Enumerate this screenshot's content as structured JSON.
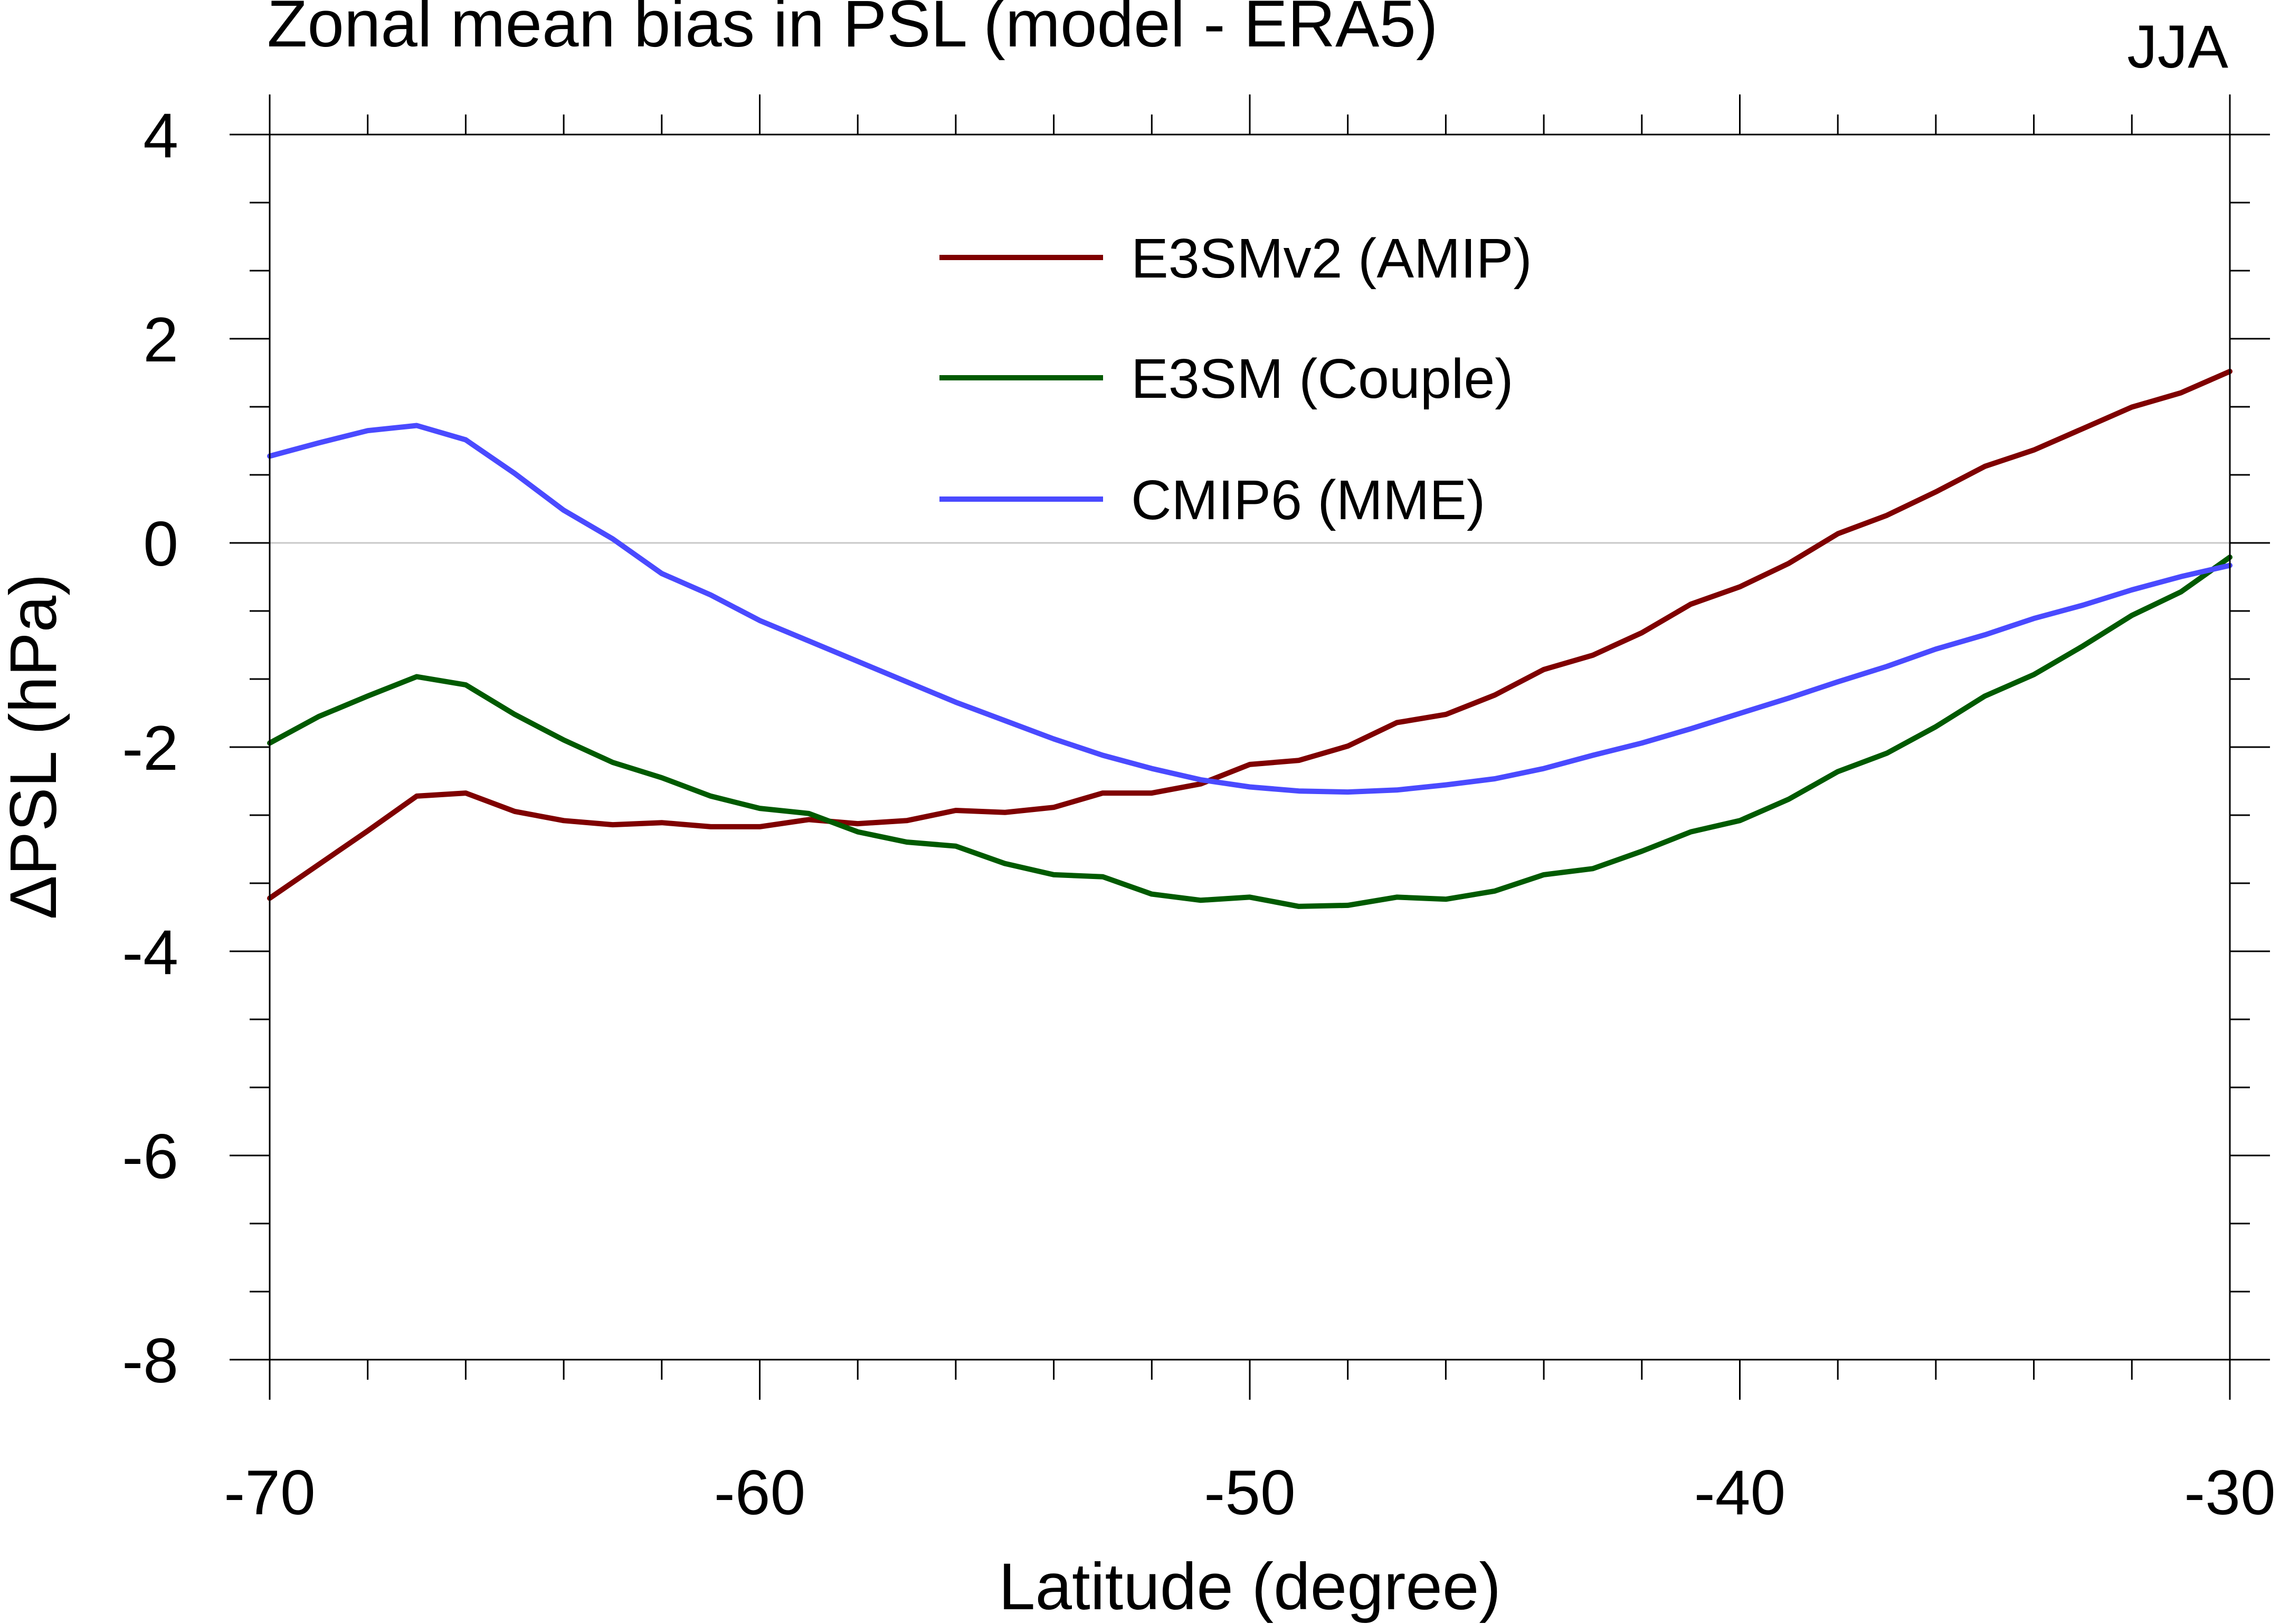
{
  "chart_data": {
    "type": "line",
    "title": "Zonal mean bias in PSL (model - ERA5)",
    "season_label": "JJA",
    "xlabel": "Latitude (degree)",
    "ylabel": "ΔPSL (hPa)",
    "xlim": [
      -70,
      -30
    ],
    "ylim": [
      -8,
      4
    ],
    "x_major_ticks": [
      -70,
      -60,
      -50,
      -40,
      -30
    ],
    "x_tick_labels": [
      "-70",
      "-60",
      "-50",
      "-40",
      "-30"
    ],
    "x_minor_step": 2,
    "y_major_ticks": [
      -8,
      -6,
      -4,
      -2,
      0,
      2,
      4
    ],
    "y_tick_labels": [
      "-8",
      "-6",
      "-4",
      "-2",
      "0",
      "2",
      "4"
    ],
    "y_minor_step": 0.667,
    "zero_line": true,
    "legend_position": "top-center",
    "x": [
      -70,
      -69,
      -68,
      -67,
      -66,
      -65,
      -64,
      -63,
      -62,
      -61,
      -60,
      -59,
      -58,
      -57,
      -56,
      -55,
      -54,
      -53,
      -52,
      -51,
      -50,
      -49,
      -48,
      -47,
      -46,
      -45,
      -44,
      -43,
      -42,
      -41,
      -40,
      -39,
      -38,
      -37,
      -36,
      -35,
      -34,
      -33,
      -32,
      -31,
      -30
    ],
    "series": [
      {
        "name": "E3SMv2 (AMIP)",
        "color": "#7f0000",
        "values": [
          -3.48,
          -3.15,
          -2.82,
          -2.48,
          -2.45,
          -2.63,
          -2.72,
          -2.76,
          -2.74,
          -2.78,
          -2.78,
          -2.71,
          -2.75,
          -2.72,
          -2.62,
          -2.64,
          -2.59,
          -2.45,
          -2.45,
          -2.36,
          -2.17,
          -2.13,
          -1.99,
          -1.76,
          -1.68,
          -1.49,
          -1.24,
          -1.1,
          -0.88,
          -0.6,
          -0.43,
          -0.2,
          0.09,
          0.27,
          0.5,
          0.75,
          0.91,
          1.12,
          1.33,
          1.47,
          1.68
        ]
      },
      {
        "name": "E3SM (Couple)",
        "color": "#005a00",
        "values": [
          -1.96,
          -1.7,
          -1.5,
          -1.31,
          -1.39,
          -1.68,
          -1.93,
          -2.15,
          -2.3,
          -2.48,
          -2.6,
          -2.65,
          -2.83,
          -2.93,
          -2.97,
          -3.14,
          -3.25,
          -3.27,
          -3.44,
          -3.5,
          -3.47,
          -3.56,
          -3.55,
          -3.47,
          -3.49,
          -3.41,
          -3.25,
          -3.19,
          -3.02,
          -2.83,
          -2.72,
          -2.51,
          -2.24,
          -2.06,
          -1.8,
          -1.5,
          -1.29,
          -1.01,
          -0.71,
          -0.48,
          -0.14
        ]
      },
      {
        "name": "CMIP6 (MME)",
        "color": "#4a4aff",
        "values": [
          0.85,
          0.98,
          1.1,
          1.15,
          1.01,
          0.68,
          0.32,
          0.04,
          -0.3,
          -0.51,
          -0.76,
          -0.96,
          -1.16,
          -1.36,
          -1.56,
          -1.74,
          -1.92,
          -2.08,
          -2.21,
          -2.32,
          -2.39,
          -2.43,
          -2.44,
          -2.42,
          -2.37,
          -2.31,
          -2.21,
          -2.08,
          -1.96,
          -1.82,
          -1.67,
          -1.52,
          -1.36,
          -1.21,
          -1.04,
          -0.9,
          -0.74,
          -0.61,
          -0.46,
          -0.33,
          -0.22
        ]
      }
    ]
  }
}
